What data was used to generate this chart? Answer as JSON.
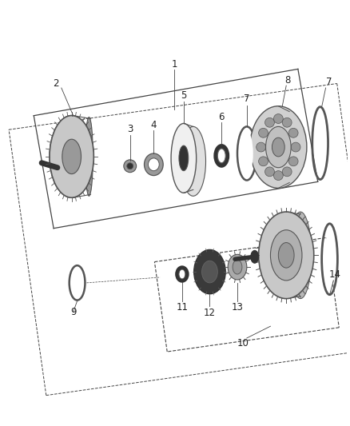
{
  "bg_color": "#ffffff",
  "figsize": [
    4.38,
    5.33
  ],
  "dpi": 100,
  "label_color": "#222222",
  "line_color": "#444444",
  "part_edge": "#555555",
  "part_fill": "#c8c8c8",
  "part_dark": "#333333",
  "part_mid": "#999999"
}
